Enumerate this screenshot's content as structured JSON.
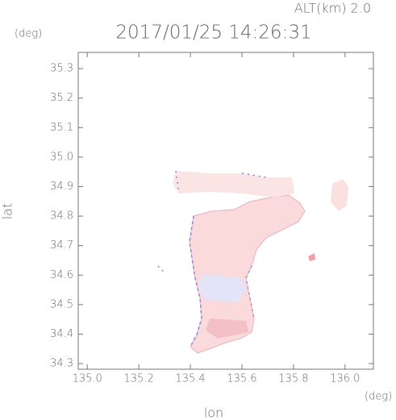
{
  "chart_data": {
    "type": "map",
    "title": "2017/01/25 14:26:31",
    "altitude_label": "ALT(km)  2.0",
    "x_label": "lon",
    "y_label": "lat",
    "x_unit": "(deg)",
    "y_unit": "(deg)",
    "xlim": [
      134.965,
      136.11
    ],
    "ylim": [
      34.281,
      35.355
    ],
    "xticks": [
      {
        "value": 135,
        "label": "135.0"
      },
      135.2,
      135.4,
      135.6,
      135.8,
      {
        "value": 136,
        "label": "136.0"
      }
    ],
    "yticks": [
      34.3,
      34.4,
      34.5,
      34.6,
      34.7,
      34.8,
      34.9,
      {
        "value": 35,
        "label": "35.0"
      },
      35.1,
      35.2,
      35.3
    ],
    "grid": false
  }
}
